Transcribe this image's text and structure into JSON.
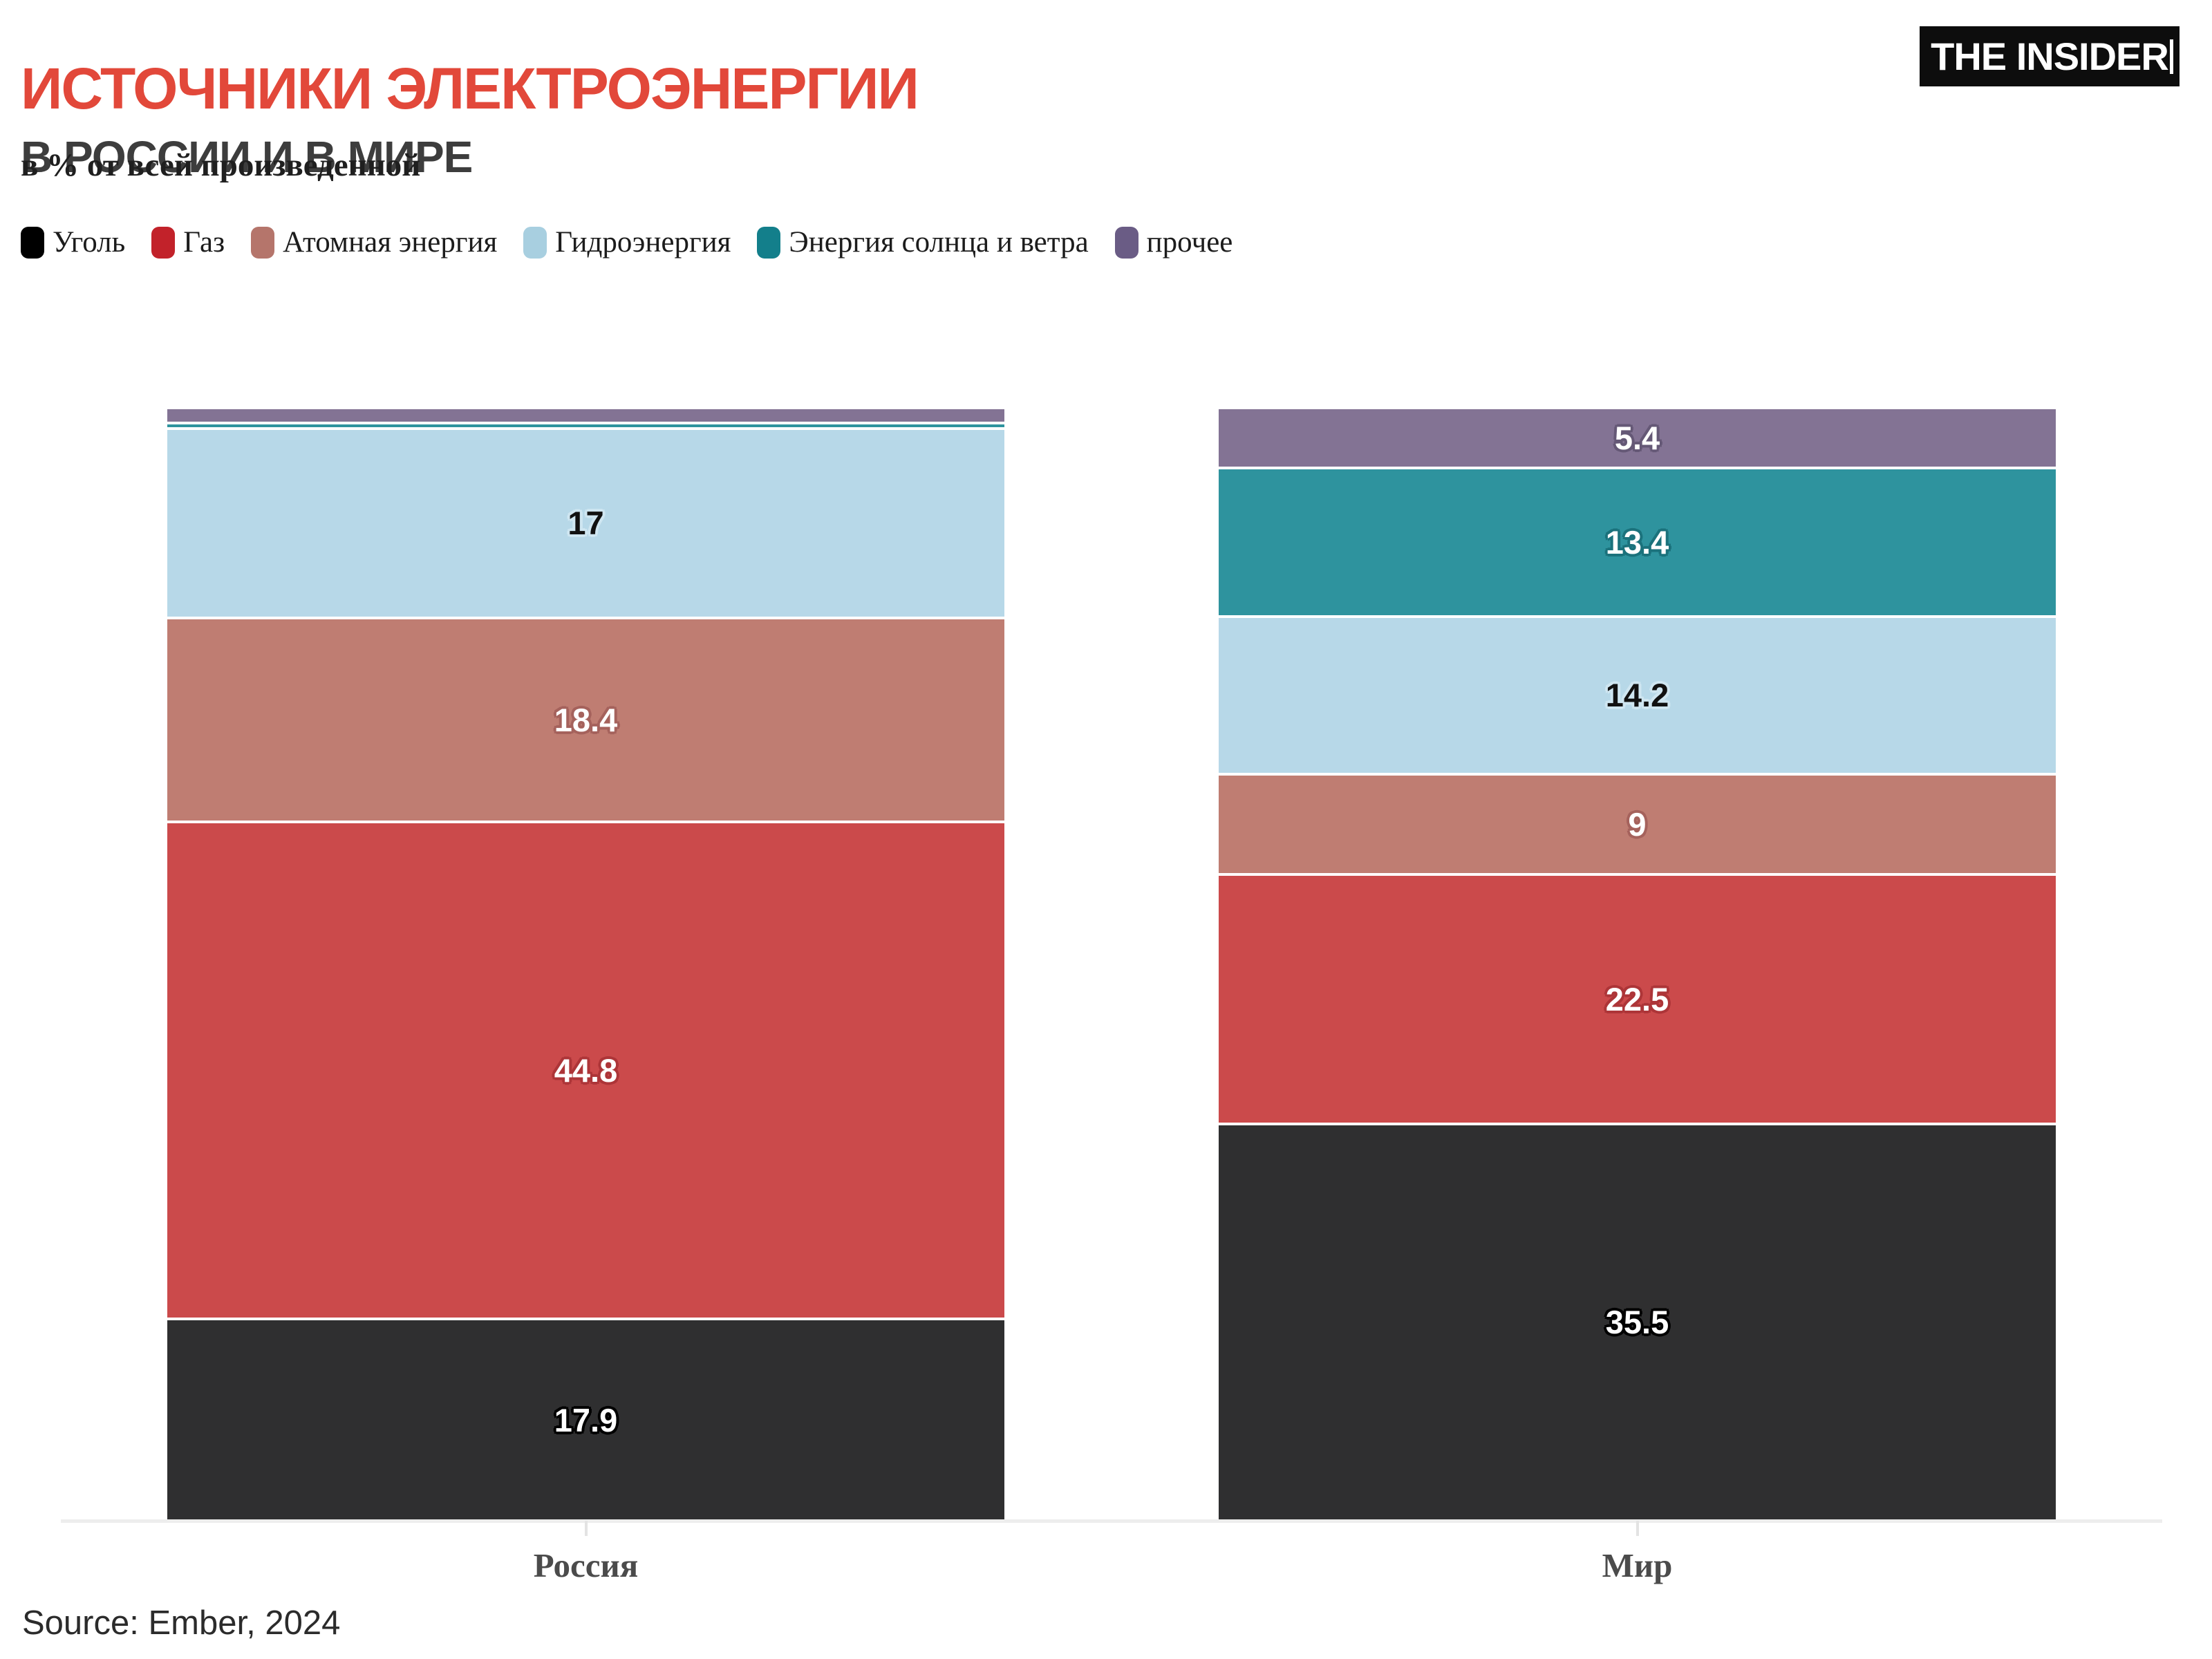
{
  "header": {
    "title": "ИСТОЧНИКИ ЭЛЕКТРОЭНЕРГИИ",
    "subtitle": "В РОССИИ И В МИРЕ",
    "unit_note": "в % от всей произведенной",
    "title_color": "#e2483a"
  },
  "logo": {
    "text": "THE INSIDER",
    "bg": "#0d0d0d",
    "fg": "#ffffff"
  },
  "legend": {
    "items": [
      {
        "label": "Уголь",
        "color": "#000000"
      },
      {
        "label": "Газ",
        "color": "#c2222a"
      },
      {
        "label": "Атомная энергия",
        "color": "#b5756b"
      },
      {
        "label": "Гидроэнергия",
        "color": "#a8cfe0"
      },
      {
        "label": "Энергия солнца и ветра",
        "color": "#137f8b"
      },
      {
        "label": "прочее",
        "color": "#6a5c85"
      }
    ]
  },
  "chart_data": {
    "type": "bar",
    "stacked": true,
    "unit": "%",
    "title": "Источники электроэнергии в России и в мире, в % от всей произведенной",
    "categories": [
      "Россия",
      "Мир"
    ],
    "series": [
      {
        "name": "Уголь",
        "values": [
          17.9,
          35.5
        ],
        "labels": [
          "17.9",
          "35.5"
        ],
        "fill": "#2f2f30",
        "label_color": "#ffffff",
        "halo": "#000000"
      },
      {
        "name": "Газ",
        "values": [
          44.8,
          22.5
        ],
        "labels": [
          "44.8",
          "22.5"
        ],
        "fill": "#cb4a4b",
        "label_color": "#ffffff",
        "halo": "#ad3538"
      },
      {
        "name": "Атомная энергия",
        "values": [
          18.4,
          9
        ],
        "labels": [
          "18.4",
          "9"
        ],
        "fill": "#bf7d72",
        "label_color": "#ffffff",
        "halo": "#a5625c"
      },
      {
        "name": "Гидроэнергия",
        "values": [
          17,
          14.2
        ],
        "labels": [
          "17",
          "14.2"
        ],
        "fill": "#b7d8e8",
        "label_color": "#111111",
        "halo": "#cfe6f1"
      },
      {
        "name": "Энергия солнца и ветра",
        "values": [
          0.5,
          13.4
        ],
        "labels": [
          "",
          "13.4"
        ],
        "fill": "#2e939e",
        "label_color": "#ffffff",
        "halo": "#1b727c"
      },
      {
        "name": "прочее",
        "values": [
          1.4,
          5.4
        ],
        "labels": [
          "",
          "5.4"
        ],
        "fill": "#837394",
        "label_color": "#ffffff",
        "halo": "#655876"
      }
    ],
    "ylim": [
      0,
      100
    ],
    "value_labels": "inside-center",
    "legend_position": "top",
    "grid": false,
    "baseline_color": "#ededed"
  },
  "footer": {
    "source": "Source: Ember, 2024"
  }
}
